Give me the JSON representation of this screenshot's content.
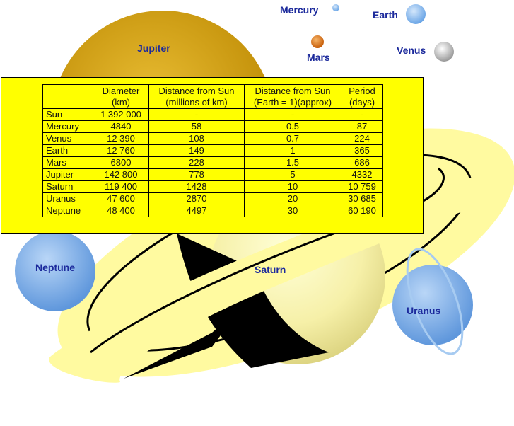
{
  "labels": {
    "jupiter": "Jupiter",
    "mercury": "Mercury",
    "earth": "Earth",
    "mars": "Mars",
    "venus": "Venus",
    "neptune": "Neptune",
    "saturn": "Saturn",
    "uranus": "Uranus"
  },
  "table": {
    "headers": [
      [
        "",
        ""
      ],
      [
        "Diameter",
        "(km)"
      ],
      [
        "Distance from Sun",
        "(millions of km)"
      ],
      [
        "Distance from Sun",
        "(Earth = 1)(approx)"
      ],
      [
        "Period",
        "(days)"
      ]
    ],
    "rows": [
      [
        "Sun",
        "1 392 000",
        "-",
        "-",
        "-"
      ],
      [
        "Mercury",
        "4840",
        "58",
        "0.5",
        "87"
      ],
      [
        "Venus",
        "12 390",
        "108",
        "0.7",
        "224"
      ],
      [
        "Earth",
        "12 760",
        "149",
        "1",
        "365"
      ],
      [
        "Mars",
        "6800",
        "228",
        "1.5",
        "686"
      ],
      [
        "Jupiter",
        "142 800",
        "778",
        "5",
        "4332"
      ],
      [
        "Saturn",
        "119 400",
        "1428",
        "10",
        "10 759"
      ],
      [
        "Uranus",
        "47 600",
        "2870",
        "20",
        "30 685"
      ],
      [
        "Neptune",
        "48 400",
        "4497",
        "30",
        "60 190"
      ]
    ]
  },
  "colors": {
    "panel": "#ffff00",
    "label_text": "#1c2a9c",
    "jupiter": "#d4a20c",
    "saturn_ring": "#fffaa0",
    "blue_planet": "#7aaee8"
  }
}
